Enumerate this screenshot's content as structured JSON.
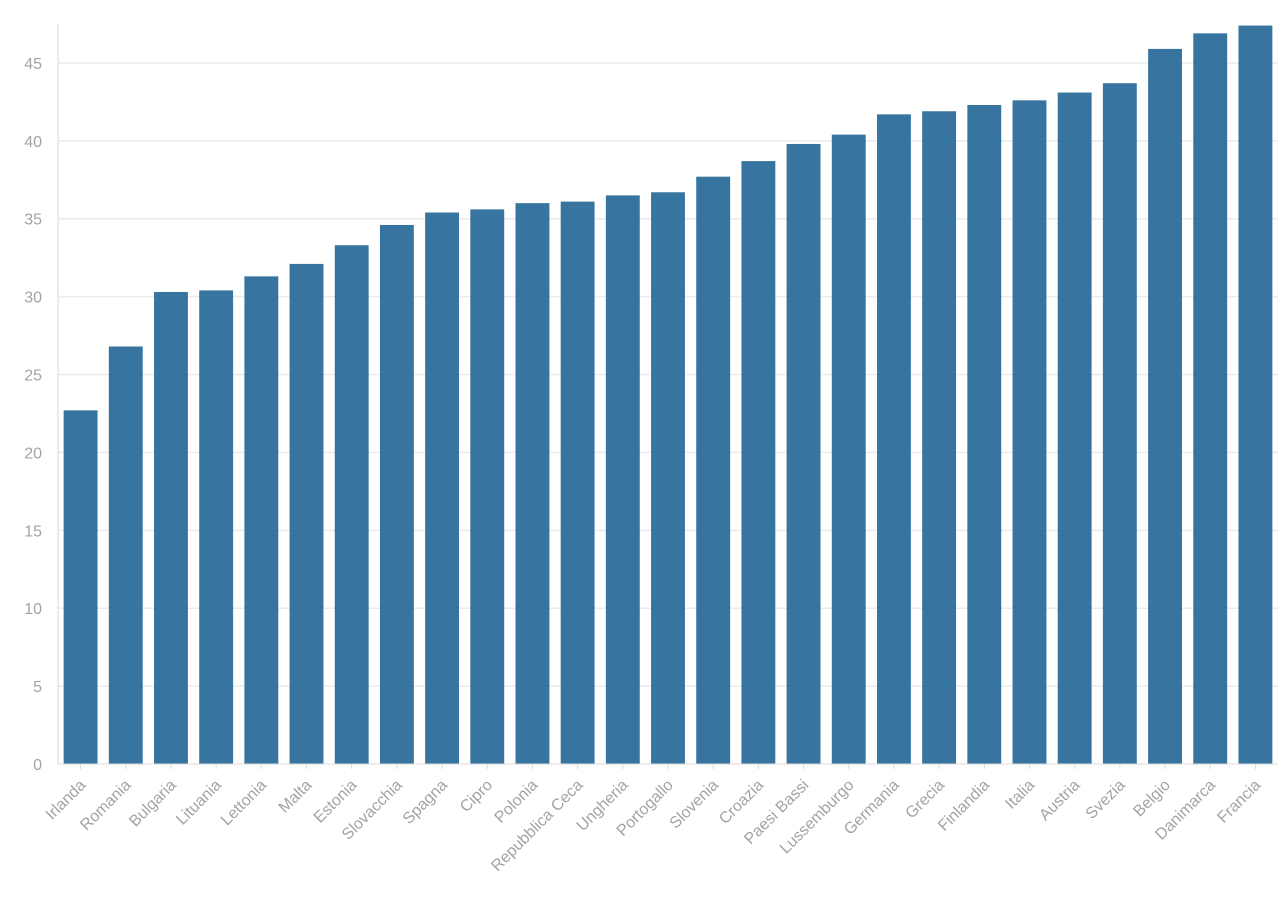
{
  "chart_data": {
    "type": "bar",
    "title": "",
    "xlabel": "",
    "ylabel": "",
    "ylim": [
      0,
      47.5
    ],
    "yticks": [
      0,
      5,
      10,
      15,
      20,
      25,
      30,
      35,
      40,
      45
    ],
    "grid": true,
    "bar_color": "#2c6e9b",
    "categories": [
      "Irlanda",
      "Romania",
      "Bulgaria",
      "Lituania",
      "Lettonia",
      "Malta",
      "Estonia",
      "Slovacchia",
      "Spagna",
      "Cipro",
      "Polonia",
      "Repubblica Ceca",
      "Ungheria",
      "Portogallo",
      "Slovenia",
      "Croazia",
      "Paesi Bassi",
      "Lussemburgo",
      "Germania",
      "Grecia",
      "Finlandia",
      "Italia",
      "Austria",
      "Svezia",
      "Belgio",
      "Danimarca",
      "Francia"
    ],
    "values": [
      22.7,
      26.8,
      30.3,
      30.4,
      31.3,
      32.1,
      33.3,
      34.6,
      35.4,
      35.6,
      36.0,
      36.1,
      36.5,
      36.7,
      37.7,
      38.7,
      39.8,
      40.4,
      41.7,
      41.9,
      42.3,
      42.6,
      43.1,
      43.7,
      45.9,
      46.9,
      47.4
    ]
  }
}
